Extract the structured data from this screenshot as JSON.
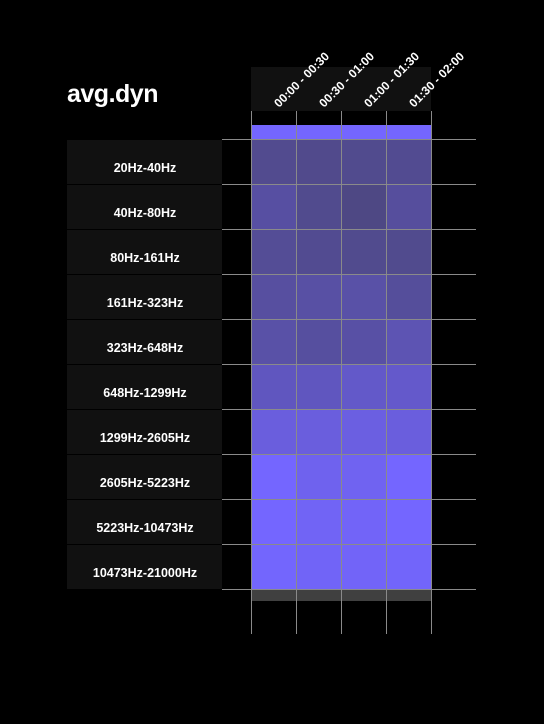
{
  "title": "avg.dyn",
  "chart_data": {
    "type": "heatmap",
    "title": "avg.dyn",
    "columns": [
      "00:00 - 00:30",
      "00:30 - 01:00",
      "01:00 - 01:30",
      "01:30 - 02:00"
    ],
    "rows": [
      "20Hz-40Hz",
      "40Hz-80Hz",
      "80Hz-161Hz",
      "161Hz-323Hz",
      "323Hz-648Hz",
      "648Hz-1299Hz",
      "1299Hz-2605Hz",
      "2605Hz-5223Hz",
      "5223Hz-10473Hz",
      "10473Hz-21000Hz"
    ],
    "values": [
      [
        0.34,
        0.32,
        0.33,
        0.35
      ],
      [
        0.45,
        0.33,
        0.27,
        0.42
      ],
      [
        0.38,
        0.35,
        0.33,
        0.33
      ],
      [
        0.44,
        0.46,
        0.48,
        0.41
      ],
      [
        0.48,
        0.43,
        0.47,
        0.55
      ],
      [
        0.62,
        0.62,
        0.68,
        0.69
      ],
      [
        0.8,
        0.8,
        0.82,
        0.8
      ],
      [
        1.0,
        0.9,
        0.92,
        1.0
      ],
      [
        1.0,
        0.94,
        0.96,
        1.0
      ],
      [
        0.99,
        0.95,
        0.96,
        0.97
      ]
    ],
    "color_low": "#403d56",
    "color_high": "#7466ff",
    "top_bar_color": "#7466ff",
    "label_bg_color": "#111111",
    "grid": true
  }
}
